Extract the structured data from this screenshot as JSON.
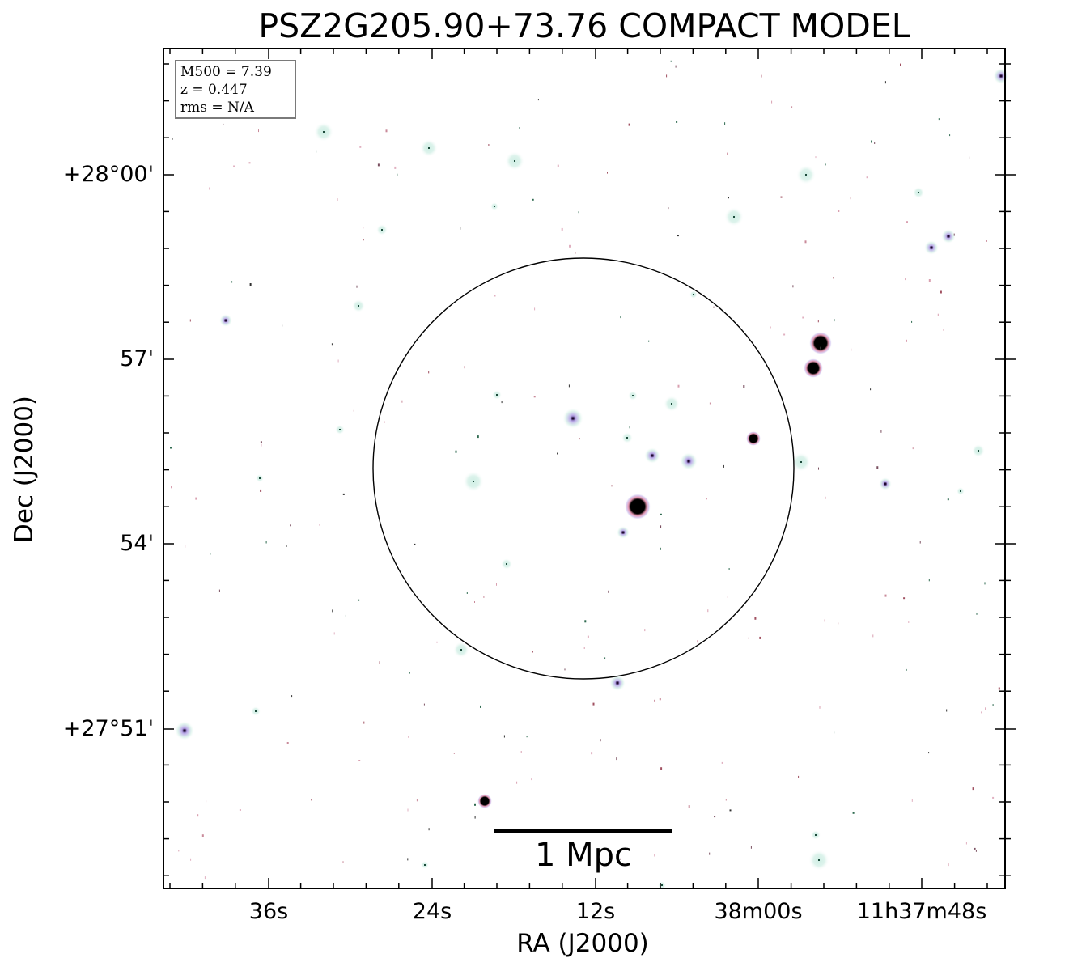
{
  "title": "PSZ2G205.90+73.76 COMPACT MODEL",
  "info": {
    "mass": "M500 = 7.39",
    "redshift": "z = 0.447",
    "rms": "rms = N/A"
  },
  "axes": {
    "x_title": "RA (J2000)",
    "y_title": "Dec (J2000)",
    "ra_ticks": [
      "36s",
      "24s",
      "12s",
      "38m00s",
      "11h37m48s"
    ],
    "dec_ticks": [
      "+28°00'",
      "57'",
      "54'",
      "+27°51'"
    ]
  },
  "scale_bar": {
    "label": "1 Mpc"
  },
  "colors": {
    "background": "#ffffff",
    "frame": "#000000",
    "faint_source": "#cfeee4",
    "mid_source": "#b9a6e8",
    "bright_source": "#000000",
    "source_halo": "#e07fa0"
  }
}
